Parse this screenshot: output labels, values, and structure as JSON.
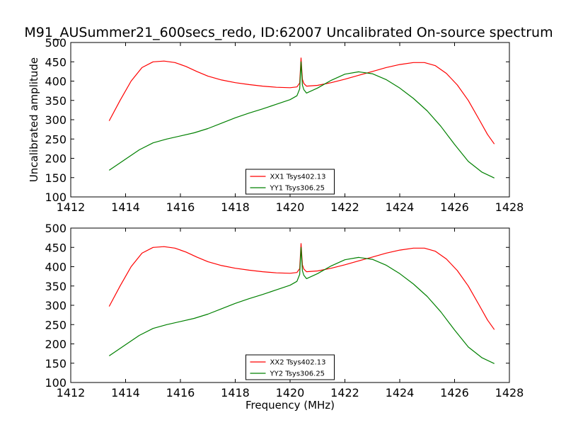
{
  "title": "M91_AUSummer21_600secs_redo, ID:62007 Uncalibrated On-source spectrum",
  "colors": {
    "xx": "#ff0000",
    "yy": "#008000"
  },
  "chart_data": [
    {
      "type": "line",
      "ylabel": "Uncalibrated amplitude",
      "xlabel": "",
      "xlim": [
        1412,
        1428
      ],
      "ylim": [
        100,
        500
      ],
      "xticks": [
        1412,
        1414,
        1416,
        1418,
        1420,
        1422,
        1424,
        1426,
        1428
      ],
      "yticks": [
        100,
        150,
        200,
        250,
        300,
        350,
        400,
        450,
        500
      ],
      "legend_position": "bottom-center",
      "series": [
        {
          "name": "XX1 Tsys402.13",
          "color": "#ff0000",
          "x": [
            1413.4,
            1413.8,
            1414.2,
            1414.6,
            1415.0,
            1415.4,
            1415.8,
            1416.2,
            1416.6,
            1417.0,
            1417.5,
            1418.0,
            1418.5,
            1419.0,
            1419.5,
            1420.0,
            1420.25,
            1420.35,
            1420.4,
            1420.45,
            1420.5,
            1420.6,
            1421.0,
            1421.5,
            1422.0,
            1422.5,
            1423.0,
            1423.5,
            1424.0,
            1424.5,
            1424.9,
            1425.3,
            1425.7,
            1426.1,
            1426.5,
            1426.9,
            1427.2,
            1427.45
          ],
          "y": [
            297,
            350,
            400,
            435,
            450,
            452,
            448,
            438,
            425,
            413,
            403,
            396,
            391,
            387,
            384,
            383,
            385,
            395,
            460,
            405,
            394,
            387,
            389,
            396,
            405,
            415,
            425,
            435,
            443,
            448,
            448,
            440,
            420,
            390,
            350,
            300,
            262,
            237
          ]
        },
        {
          "name": "YY1 Tsys306.25",
          "color": "#008000",
          "x": [
            1413.4,
            1414.0,
            1414.5,
            1415.0,
            1415.5,
            1416.0,
            1416.5,
            1417.0,
            1417.5,
            1418.0,
            1418.5,
            1419.0,
            1419.5,
            1420.0,
            1420.25,
            1420.35,
            1420.4,
            1420.45,
            1420.5,
            1420.6,
            1421.0,
            1421.5,
            1422.0,
            1422.5,
            1423.0,
            1423.5,
            1424.0,
            1424.5,
            1425.0,
            1425.5,
            1426.0,
            1426.5,
            1427.0,
            1427.45
          ],
          "y": [
            169,
            198,
            222,
            240,
            250,
            258,
            266,
            277,
            291,
            305,
            317,
            328,
            340,
            352,
            362,
            380,
            450,
            390,
            378,
            369,
            382,
            402,
            418,
            424,
            419,
            404,
            382,
            355,
            323,
            283,
            236,
            192,
            164,
            149
          ]
        }
      ]
    },
    {
      "type": "line",
      "ylabel": "",
      "xlabel": "Frequency (MHz)",
      "xlim": [
        1412,
        1428
      ],
      "ylim": [
        100,
        500
      ],
      "xticks": [
        1412,
        1414,
        1416,
        1418,
        1420,
        1422,
        1424,
        1426,
        1428
      ],
      "yticks": [
        100,
        150,
        200,
        250,
        300,
        350,
        400,
        450,
        500
      ],
      "legend_position": "bottom-center",
      "series": [
        {
          "name": "XX2 Tsys402.13",
          "color": "#ff0000",
          "x": [
            1413.4,
            1413.8,
            1414.2,
            1414.6,
            1415.0,
            1415.4,
            1415.8,
            1416.2,
            1416.6,
            1417.0,
            1417.5,
            1418.0,
            1418.5,
            1419.0,
            1419.5,
            1420.0,
            1420.25,
            1420.35,
            1420.4,
            1420.45,
            1420.5,
            1420.6,
            1421.0,
            1421.5,
            1422.0,
            1422.5,
            1423.0,
            1423.5,
            1424.0,
            1424.5,
            1424.9,
            1425.3,
            1425.7,
            1426.1,
            1426.5,
            1426.9,
            1427.2,
            1427.45
          ],
          "y": [
            297,
            350,
            400,
            435,
            450,
            452,
            448,
            438,
            425,
            413,
            403,
            396,
            391,
            387,
            384,
            383,
            385,
            395,
            460,
            405,
            394,
            387,
            389,
            396,
            405,
            415,
            425,
            435,
            443,
            448,
            448,
            440,
            420,
            390,
            350,
            300,
            262,
            237
          ]
        },
        {
          "name": "YY2 Tsys306.25",
          "color": "#008000",
          "x": [
            1413.4,
            1414.0,
            1414.5,
            1415.0,
            1415.5,
            1416.0,
            1416.5,
            1417.0,
            1417.5,
            1418.0,
            1418.5,
            1419.0,
            1419.5,
            1420.0,
            1420.25,
            1420.35,
            1420.4,
            1420.45,
            1420.5,
            1420.6,
            1421.0,
            1421.5,
            1422.0,
            1422.5,
            1423.0,
            1423.5,
            1424.0,
            1424.5,
            1425.0,
            1425.5,
            1426.0,
            1426.5,
            1427.0,
            1427.45
          ],
          "y": [
            169,
            198,
            222,
            240,
            250,
            258,
            266,
            277,
            291,
            305,
            317,
            328,
            340,
            352,
            362,
            380,
            450,
            390,
            378,
            369,
            382,
            402,
            418,
            424,
            419,
            404,
            382,
            355,
            323,
            283,
            236,
            192,
            164,
            149
          ]
        }
      ]
    }
  ]
}
